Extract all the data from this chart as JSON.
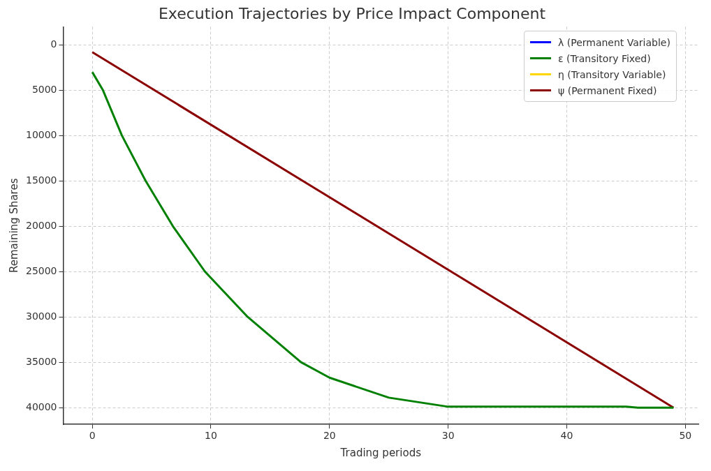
{
  "chart_data": {
    "type": "line",
    "title": "Execution Trajectories by Price Impact Component",
    "xlabel": "Trading periods",
    "ylabel": "Remaining Shares",
    "xlim": [
      -2.45,
      51.1
    ],
    "xticks": [
      0,
      10,
      20,
      30,
      40,
      50
    ],
    "ylim": [
      41850,
      -2000
    ],
    "yticks": [
      0,
      5000,
      10000,
      15000,
      20000,
      25000,
      30000,
      35000,
      40000
    ],
    "grid": true,
    "legend": "top right",
    "line_style": "solid",
    "marker": "none",
    "series": [
      {
        "name": "λ (Permanent Variable)",
        "color": "#0000ff"
      },
      {
        "name": "ε (Transitory Fixed)",
        "color": "#008000",
        "x": [
          0,
          0.9,
          2.5,
          4.5,
          6.8,
          9.5,
          13.1,
          17.6,
          20,
          25,
          30,
          45,
          46,
          49
        ],
        "values": [
          3000,
          5000,
          10000,
          15000,
          20000,
          25000,
          30000,
          35000,
          36700,
          38900,
          39900,
          39900,
          40000,
          40000
        ]
      },
      {
        "name": "η (Transitory Variable)",
        "color": "#ffd700"
      },
      {
        "name": "ψ (Permanent Fixed)",
        "color": "#8b0000",
        "x": [
          0,
          49
        ],
        "values": [
          800,
          40000
        ]
      }
    ]
  }
}
